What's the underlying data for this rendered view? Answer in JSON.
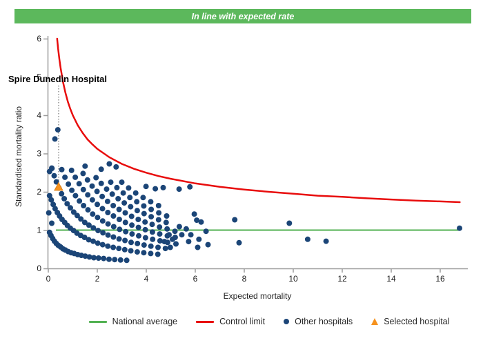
{
  "banner": {
    "text": "In line with expected rate",
    "bg_color": "#5CB85C",
    "text_color": "#ffffff"
  },
  "chart_data": {
    "type": "scatter",
    "xlabel": "Expected mortality",
    "ylabel": "Standardised mortality ratio",
    "xlim": [
      0,
      17.1
    ],
    "ylim": [
      0,
      6
    ],
    "x_ticks": [
      0,
      2,
      4,
      6,
      8,
      10,
      12,
      14,
      16
    ],
    "y_ticks": [
      0,
      1,
      2,
      3,
      4,
      5,
      6
    ],
    "grid": false,
    "axis_color": "#9c9c9c",
    "tick_label_color": "#1f1f1f",
    "national_average": {
      "value": 1.0,
      "x_start": 0.31,
      "x_end": 16.76,
      "color": "#52B152"
    },
    "control_limit": {
      "formula": "SMR = 1 + 3/sqrt(E)",
      "color": "#E80C0C",
      "points": [
        [
          0.36,
          6.0
        ],
        [
          0.4,
          5.74
        ],
        [
          0.45,
          5.47
        ],
        [
          0.5,
          5.24
        ],
        [
          0.6,
          4.87
        ],
        [
          0.7,
          4.59
        ],
        [
          0.8,
          4.35
        ],
        [
          0.9,
          4.16
        ],
        [
          1.0,
          4.0
        ],
        [
          1.2,
          3.74
        ],
        [
          1.4,
          3.54
        ],
        [
          1.6,
          3.37
        ],
        [
          1.8,
          3.24
        ],
        [
          2.0,
          3.12
        ],
        [
          2.5,
          2.9
        ],
        [
          3.0,
          2.73
        ],
        [
          3.5,
          2.6
        ],
        [
          4.0,
          2.5
        ],
        [
          4.5,
          2.41
        ],
        [
          5.0,
          2.34
        ],
        [
          6.0,
          2.22
        ],
        [
          7.0,
          2.13
        ],
        [
          8.0,
          2.06
        ],
        [
          9.0,
          2.0
        ],
        [
          10.0,
          1.95
        ],
        [
          11.0,
          1.9
        ],
        [
          12.0,
          1.87
        ],
        [
          13.0,
          1.83
        ],
        [
          14.0,
          1.8
        ],
        [
          15.0,
          1.77
        ],
        [
          16.0,
          1.75
        ],
        [
          16.8,
          1.73
        ]
      ]
    },
    "selected_hospital": {
      "name": "Spire Dunedin Hospital",
      "x": 0.42,
      "y": 2.12,
      "color": "#F6921E"
    },
    "other_hospitals": {
      "color": "#1B4577",
      "points": [
        [
          0.05,
          0.94
        ],
        [
          0.11,
          0.86
        ],
        [
          0.18,
          0.78
        ],
        [
          0.25,
          0.71
        ],
        [
          0.33,
          0.65
        ],
        [
          0.41,
          0.6
        ],
        [
          0.5,
          0.56
        ],
        [
          0.6,
          0.51
        ],
        [
          0.7,
          0.48
        ],
        [
          0.81,
          0.44
        ],
        [
          0.93,
          0.41
        ],
        [
          1.06,
          0.39
        ],
        [
          1.2,
          0.36
        ],
        [
          1.35,
          0.34
        ],
        [
          1.51,
          0.32
        ],
        [
          1.68,
          0.3
        ],
        [
          1.86,
          0.28
        ],
        [
          2.05,
          0.27
        ],
        [
          2.26,
          0.26
        ],
        [
          2.48,
          0.24
        ],
        [
          2.71,
          0.23
        ],
        [
          2.95,
          0.22
        ],
        [
          3.2,
          0.21
        ],
        [
          0.05,
          1.9
        ],
        [
          0.12,
          1.79
        ],
        [
          0.2,
          1.67
        ],
        [
          0.28,
          1.56
        ],
        [
          0.37,
          1.46
        ],
        [
          0.46,
          1.37
        ],
        [
          0.56,
          1.28
        ],
        [
          0.67,
          1.2
        ],
        [
          0.78,
          1.12
        ],
        [
          0.9,
          1.05
        ],
        [
          1.03,
          0.99
        ],
        [
          1.17,
          0.92
        ],
        [
          1.32,
          0.86
        ],
        [
          1.48,
          0.81
        ],
        [
          1.65,
          0.75
        ],
        [
          1.83,
          0.71
        ],
        [
          2.02,
          0.66
        ],
        [
          2.22,
          0.62
        ],
        [
          2.43,
          0.58
        ],
        [
          2.65,
          0.55
        ],
        [
          2.88,
          0.52
        ],
        [
          3.12,
          0.49
        ],
        [
          3.37,
          0.46
        ],
        [
          3.63,
          0.43
        ],
        [
          3.9,
          0.41
        ],
        [
          4.18,
          0.39
        ],
        [
          4.47,
          0.37
        ],
        [
          0.15,
          2.61
        ],
        [
          0.24,
          2.42
        ],
        [
          0.33,
          2.26
        ],
        [
          0.43,
          2.1
        ],
        [
          0.54,
          1.95
        ],
        [
          0.65,
          1.82
        ],
        [
          0.77,
          1.69
        ],
        [
          0.9,
          1.58
        ],
        [
          1.04,
          1.47
        ],
        [
          1.18,
          1.38
        ],
        [
          1.33,
          1.29
        ],
        [
          1.49,
          1.2
        ],
        [
          1.66,
          1.13
        ],
        [
          1.84,
          1.06
        ],
        [
          2.03,
          0.99
        ],
        [
          2.23,
          0.93
        ],
        [
          2.44,
          0.87
        ],
        [
          2.66,
          0.82
        ],
        [
          2.89,
          0.77
        ],
        [
          3.13,
          0.73
        ],
        [
          3.38,
          0.68
        ],
        [
          3.64,
          0.65
        ],
        [
          3.91,
          0.61
        ],
        [
          4.19,
          0.58
        ],
        [
          4.48,
          0.55
        ],
        [
          4.78,
          0.52
        ],
        [
          0.55,
          2.58
        ],
        [
          0.68,
          2.38
        ],
        [
          0.82,
          2.2
        ],
        [
          0.96,
          2.04
        ],
        [
          1.11,
          1.9
        ],
        [
          1.27,
          1.76
        ],
        [
          1.44,
          1.64
        ],
        [
          1.62,
          1.53
        ],
        [
          1.81,
          1.42
        ],
        [
          2.01,
          1.33
        ],
        [
          2.22,
          1.24
        ],
        [
          2.44,
          1.16
        ],
        [
          2.67,
          1.09
        ],
        [
          2.91,
          1.02
        ],
        [
          3.16,
          0.96
        ],
        [
          3.42,
          0.9
        ],
        [
          3.69,
          0.85
        ],
        [
          3.97,
          0.8
        ],
        [
          4.26,
          0.76
        ],
        [
          4.56,
          0.72
        ],
        [
          4.87,
          0.68
        ],
        [
          0.95,
          2.56
        ],
        [
          1.1,
          2.38
        ],
        [
          1.26,
          2.21
        ],
        [
          1.43,
          2.06
        ],
        [
          1.61,
          1.92
        ],
        [
          1.8,
          1.79
        ],
        [
          2.0,
          1.67
        ],
        [
          2.21,
          1.56
        ],
        [
          2.43,
          1.46
        ],
        [
          2.66,
          1.37
        ],
        [
          2.9,
          1.28
        ],
        [
          3.15,
          1.2
        ],
        [
          3.41,
          1.13
        ],
        [
          3.68,
          1.07
        ],
        [
          3.96,
          1.01
        ],
        [
          4.25,
          0.95
        ],
        [
          4.55,
          0.9
        ],
        [
          4.86,
          0.85
        ],
        [
          5.18,
          0.81
        ],
        [
          1.42,
          2.48
        ],
        [
          1.6,
          2.31
        ],
        [
          1.79,
          2.15
        ],
        [
          1.99,
          2.01
        ],
        [
          2.2,
          1.88
        ],
        [
          2.42,
          1.75
        ],
        [
          2.65,
          1.64
        ],
        [
          2.89,
          1.54
        ],
        [
          3.14,
          1.45
        ],
        [
          3.4,
          1.36
        ],
        [
          3.67,
          1.28
        ],
        [
          3.95,
          1.21
        ],
        [
          4.24,
          1.15
        ],
        [
          4.54,
          1.08
        ],
        [
          4.85,
          1.03
        ],
        [
          5.17,
          0.97
        ],
        [
          1.95,
          2.37
        ],
        [
          2.16,
          2.22
        ],
        [
          2.38,
          2.07
        ],
        [
          2.61,
          1.94
        ],
        [
          2.85,
          1.82
        ],
        [
          3.1,
          1.71
        ],
        [
          3.36,
          1.61
        ],
        [
          3.63,
          1.51
        ],
        [
          3.91,
          1.43
        ],
        [
          4.2,
          1.35
        ],
        [
          4.5,
          1.27
        ],
        [
          4.81,
          1.2
        ],
        [
          2.55,
          2.25
        ],
        [
          2.8,
          2.11
        ],
        [
          3.06,
          1.97
        ],
        [
          3.33,
          1.85
        ],
        [
          3.61,
          1.74
        ],
        [
          3.9,
          1.63
        ],
        [
          4.2,
          1.54
        ],
        [
          4.51,
          1.45
        ],
        [
          4.83,
          1.37
        ],
        [
          3.0,
          2.25
        ],
        [
          3.28,
          2.1
        ],
        [
          3.57,
          1.97
        ],
        [
          3.87,
          1.85
        ],
        [
          4.18,
          1.74
        ],
        [
          4.5,
          1.64
        ],
        [
          0.14,
          2.62
        ],
        [
          0.27,
          3.38
        ],
        [
          0.39,
          3.62
        ],
        [
          0.05,
          2.53
        ],
        [
          0.02,
          1.45
        ],
        [
          0.14,
          1.18
        ],
        [
          2.49,
          2.73
        ],
        [
          2.77,
          2.65
        ],
        [
          1.5,
          2.67
        ],
        [
          2.16,
          2.59
        ],
        [
          3.99,
          2.14
        ],
        [
          4.37,
          2.08
        ],
        [
          4.69,
          2.11
        ],
        [
          5.34,
          2.07
        ],
        [
          5.78,
          2.13
        ],
        [
          4.93,
          0.88
        ],
        [
          5.07,
          0.76
        ],
        [
          4.74,
          0.7
        ],
        [
          5.21,
          0.64
        ],
        [
          4.98,
          0.55
        ],
        [
          5.35,
          1.09
        ],
        [
          5.63,
          1.03
        ],
        [
          5.45,
          0.88
        ],
        [
          5.82,
          0.88
        ],
        [
          5.73,
          0.7
        ],
        [
          6.15,
          0.76
        ],
        [
          5.96,
          1.42
        ],
        [
          6.06,
          1.26
        ],
        [
          6.24,
          1.21
        ],
        [
          6.44,
          0.97
        ],
        [
          6.1,
          0.55
        ],
        [
          6.52,
          0.62
        ],
        [
          7.61,
          1.27
        ],
        [
          7.79,
          0.67
        ],
        [
          9.84,
          1.18
        ],
        [
          10.59,
          0.76
        ],
        [
          11.34,
          0.71
        ],
        [
          16.79,
          1.05
        ]
      ]
    }
  },
  "legend": {
    "items": [
      {
        "label": "National average",
        "type": "line",
        "color": "#52B152"
      },
      {
        "label": "Control limit",
        "type": "line",
        "color": "#E80C0C"
      },
      {
        "label": "Other hospitals",
        "type": "dot",
        "color": "#1B4577"
      },
      {
        "label": "Selected hospital",
        "type": "triangle",
        "color": "#F6921E"
      }
    ]
  }
}
